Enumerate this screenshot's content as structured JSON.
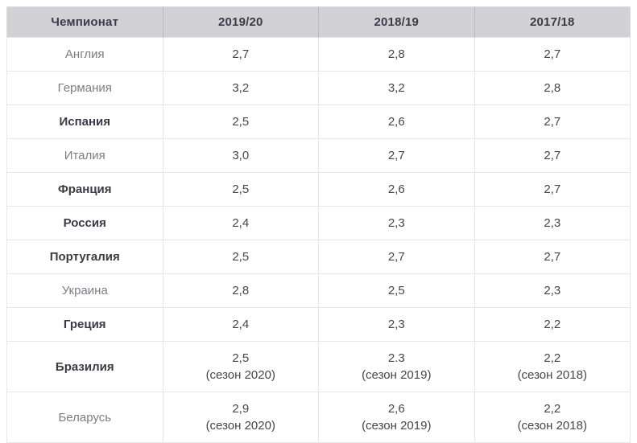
{
  "table": {
    "columns": [
      "Чемпионат",
      "2019/20",
      "2018/19",
      "2017/18"
    ],
    "rows": [
      {
        "championship": "Англия",
        "bold": false,
        "values": [
          [
            "2,7"
          ],
          [
            "2,8"
          ],
          [
            "2,7"
          ]
        ]
      },
      {
        "championship": "Германия",
        "bold": false,
        "values": [
          [
            "3,2"
          ],
          [
            "3,2"
          ],
          [
            "2,8"
          ]
        ]
      },
      {
        "championship": "Испания",
        "bold": true,
        "values": [
          [
            "2,5"
          ],
          [
            "2,6"
          ],
          [
            "2,7"
          ]
        ]
      },
      {
        "championship": "Италия",
        "bold": false,
        "values": [
          [
            "3,0"
          ],
          [
            "2,7"
          ],
          [
            "2,7"
          ]
        ]
      },
      {
        "championship": "Франция",
        "bold": true,
        "values": [
          [
            "2,5"
          ],
          [
            "2,6"
          ],
          [
            "2,7"
          ]
        ]
      },
      {
        "championship": "Россия",
        "bold": true,
        "values": [
          [
            "2,4"
          ],
          [
            "2,3"
          ],
          [
            "2,3"
          ]
        ]
      },
      {
        "championship": "Португалия",
        "bold": true,
        "values": [
          [
            "2,5"
          ],
          [
            "2,7"
          ],
          [
            "2,7"
          ]
        ]
      },
      {
        "championship": "Украина",
        "bold": false,
        "values": [
          [
            "2,8"
          ],
          [
            "2,5"
          ],
          [
            "2,3"
          ]
        ]
      },
      {
        "championship": "Греция",
        "bold": true,
        "values": [
          [
            "2,4"
          ],
          [
            "2,3"
          ],
          [
            "2,2"
          ]
        ]
      },
      {
        "championship": "Бразилия",
        "bold": true,
        "values": [
          [
            "2,5",
            "(сезон 2020)"
          ],
          [
            "2.3",
            "(сезон 2019)"
          ],
          [
            "2,2",
            "(сезон 2018)"
          ]
        ]
      },
      {
        "championship": "Беларусь",
        "bold": false,
        "values": [
          [
            "2,9",
            "(сезон 2020)"
          ],
          [
            "2,6",
            "(сезон 2019)"
          ],
          [
            "2,2",
            "(сезон 2018)"
          ]
        ]
      }
    ]
  },
  "chart_data": {
    "type": "table",
    "columns": [
      "Чемпионат",
      "2019/20",
      "2018/19",
      "2017/18"
    ],
    "rows": [
      [
        "Англия",
        "2,7",
        "2,8",
        "2,7"
      ],
      [
        "Германия",
        "3,2",
        "3,2",
        "2,8"
      ],
      [
        "Испания",
        "2,5",
        "2,6",
        "2,7"
      ],
      [
        "Италия",
        "3,0",
        "2,7",
        "2,7"
      ],
      [
        "Франция",
        "2,5",
        "2,6",
        "2,7"
      ],
      [
        "Россия",
        "2,4",
        "2,3",
        "2,3"
      ],
      [
        "Португалия",
        "2,5",
        "2,7",
        "2,7"
      ],
      [
        "Украина",
        "2,8",
        "2,5",
        "2,3"
      ],
      [
        "Греция",
        "2,4",
        "2,3",
        "2,2"
      ],
      [
        "Бразилия",
        "2,5 (сезон 2020)",
        "2.3 (сезон 2019)",
        "2,2 (сезон 2018)"
      ],
      [
        "Беларусь",
        "2,9 (сезон 2020)",
        "2,6 (сезон 2019)",
        "2,2 (сезон 2018)"
      ]
    ]
  },
  "colors": {
    "header_bg": "#d2d2d6",
    "header_text": "#3b3b46",
    "header_divider": "#babac1",
    "body_border": "#e7e7ea",
    "outer_border": "#dcdce0",
    "bold_text": "#3b3b46",
    "muted_text": "#7c7c86",
    "value_text": "#45454e",
    "page_bg": "#ffffff"
  }
}
